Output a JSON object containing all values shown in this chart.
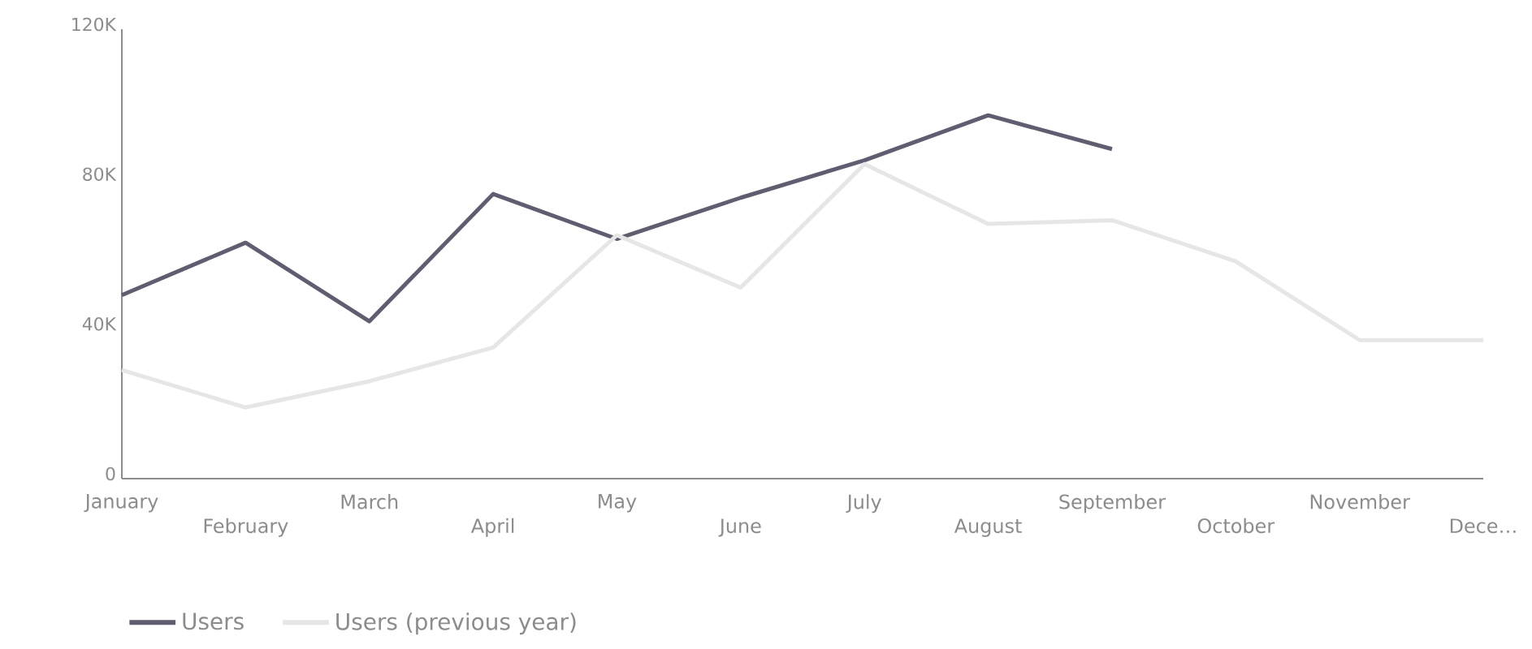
{
  "chart_data": {
    "type": "line",
    "categories": [
      "January",
      "February",
      "March",
      "April",
      "May",
      "June",
      "July",
      "August",
      "September",
      "October",
      "November",
      "Dece…"
    ],
    "series": [
      {
        "name": "Users",
        "color": "#5f5d70",
        "values": [
          49000,
          63000,
          42000,
          76000,
          64000,
          75000,
          85000,
          97000,
          88000,
          null,
          null,
          null
        ]
      },
      {
        "name": "Users (previous year)",
        "color": "#e6e6e6",
        "values": [
          29000,
          19000,
          26000,
          35000,
          65000,
          51000,
          84000,
          68000,
          69000,
          58000,
          37000,
          37000
        ]
      }
    ],
    "ylim": [
      0,
      120000
    ],
    "yticks": [
      {
        "value": 0,
        "label": "0"
      },
      {
        "value": 40000,
        "label": "40K"
      },
      {
        "value": 80000,
        "label": "80K"
      },
      {
        "value": 120000,
        "label": "120K"
      }
    ],
    "grid": false,
    "legend": "bottom left",
    "marker": "none",
    "line_style": "solid"
  }
}
